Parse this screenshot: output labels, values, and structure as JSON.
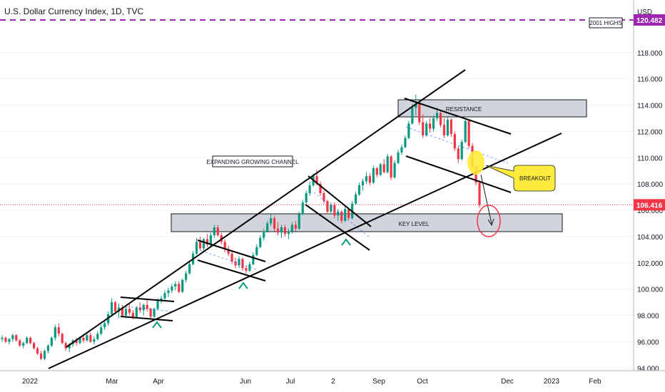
{
  "chart_data": {
    "type": "candlestick",
    "title": "U.S. Dollar Currency Index, 1D, TVC",
    "y_axis_unit": "USD",
    "ylim": [
      93.8,
      122.0
    ],
    "y_ticks": [
      "94.000",
      "96.000",
      "98.000",
      "100.000",
      "102.000",
      "104.000",
      "106.000",
      "108.000",
      "110.000",
      "112.000",
      "114.000",
      "116.000",
      "118.000"
    ],
    "x_ticks": [
      "2022",
      "Mar",
      "Apr",
      "Jun",
      "Jul",
      "2",
      "Sep",
      "Oct",
      "Dec",
      "2023",
      "Feb"
    ],
    "price_tags": [
      {
        "label": "120.482",
        "value": 120.482,
        "color": "#9c27b0"
      },
      {
        "label": "106.416",
        "value": 106.416,
        "color": "#f23645"
      }
    ],
    "annotations": {
      "highs_label": "2001 HIGHS",
      "resistance": "RESISTANCE",
      "key_level": "KEY LEVEL",
      "channel": "EXPANDING GROWING CHANNEL",
      "breakout": "BREAKOUT"
    },
    "colors": {
      "up": "#089981",
      "down": "#f23645",
      "highs_line": "#9c27b0",
      "price_line": "#f23645",
      "breakout_fill": "#ffeb3b",
      "zone_fill": "#d1d4dc"
    },
    "series": [
      {
        "values": [
          [
            96.2,
            96.5,
            96.0,
            96.3
          ],
          [
            96.3,
            96.4,
            95.9,
            96.0
          ],
          [
            96.0,
            96.3,
            95.8,
            96.2
          ],
          [
            96.2,
            96.6,
            96.0,
            96.5
          ],
          [
            96.5,
            96.6,
            96.0,
            96.1
          ],
          [
            96.1,
            96.2,
            95.6,
            95.7
          ],
          [
            95.7,
            96.0,
            95.5,
            95.9
          ],
          [
            95.9,
            96.4,
            95.8,
            96.3
          ],
          [
            96.3,
            96.4,
            95.8,
            95.9
          ],
          [
            95.9,
            96.0,
            95.4,
            95.5
          ],
          [
            95.5,
            95.6,
            95.0,
            95.1
          ],
          [
            95.1,
            95.3,
            94.6,
            94.7
          ],
          [
            94.7,
            95.4,
            94.6,
            95.3
          ],
          [
            95.3,
            95.8,
            95.1,
            95.7
          ],
          [
            95.7,
            96.4,
            95.6,
            96.3
          ],
          [
            96.3,
            97.3,
            96.1,
            97.1
          ],
          [
            97.1,
            97.4,
            96.4,
            96.6
          ],
          [
            96.6,
            96.7,
            95.8,
            95.9
          ],
          [
            95.9,
            96.0,
            95.3,
            95.5
          ],
          [
            95.5,
            95.9,
            95.2,
            95.8
          ],
          [
            95.8,
            96.2,
            95.6,
            96.1
          ],
          [
            96.1,
            96.3,
            95.7,
            95.9
          ],
          [
            95.9,
            96.4,
            95.8,
            96.3
          ],
          [
            96.3,
            96.5,
            95.9,
            96.1
          ],
          [
            96.1,
            96.6,
            96.0,
            96.5
          ],
          [
            96.5,
            96.7,
            95.9,
            96.0
          ],
          [
            96.0,
            96.4,
            95.8,
            96.2
          ],
          [
            96.2,
            96.8,
            96.1,
            96.6
          ],
          [
            96.6,
            97.3,
            96.5,
            97.1
          ],
          [
            97.1,
            97.6,
            96.9,
            97.4
          ],
          [
            97.4,
            98.3,
            97.2,
            98.1
          ],
          [
            98.1,
            99.3,
            97.9,
            99.0
          ],
          [
            99.0,
            99.1,
            98.1,
            98.3
          ],
          [
            98.3,
            98.9,
            97.8,
            98.6
          ],
          [
            98.6,
            98.8,
            97.9,
            98.0
          ],
          [
            98.0,
            98.7,
            97.8,
            98.5
          ],
          [
            98.5,
            98.9,
            98.0,
            98.2
          ],
          [
            98.2,
            98.4,
            97.7,
            97.9
          ],
          [
            97.9,
            98.7,
            97.8,
            98.6
          ],
          [
            98.6,
            99.0,
            98.2,
            98.4
          ],
          [
            98.4,
            98.9,
            98.0,
            98.8
          ],
          [
            98.8,
            99.2,
            98.3,
            98.5
          ],
          [
            98.5,
            98.6,
            97.8,
            97.9
          ],
          [
            97.9,
            98.6,
            97.8,
            98.5
          ],
          [
            98.5,
            99.3,
            98.4,
            99.1
          ],
          [
            99.1,
            99.5,
            98.9,
            99.3
          ],
          [
            99.3,
            99.9,
            99.1,
            99.7
          ],
          [
            99.7,
            100.1,
            99.4,
            99.9
          ],
          [
            99.9,
            100.4,
            99.7,
            100.2
          ],
          [
            100.2,
            100.6,
            99.9,
            100.4
          ],
          [
            100.4,
            100.6,
            99.7,
            99.8
          ],
          [
            99.8,
            100.8,
            99.7,
            100.7
          ],
          [
            100.7,
            101.4,
            100.5,
            101.2
          ],
          [
            101.2,
            102.1,
            101.1,
            101.9
          ],
          [
            101.9,
            102.9,
            101.8,
            102.7
          ],
          [
            102.7,
            103.9,
            102.6,
            103.6
          ],
          [
            103.6,
            104.0,
            102.9,
            103.1
          ],
          [
            103.1,
            103.9,
            102.9,
            103.8
          ],
          [
            103.8,
            104.2,
            103.2,
            103.4
          ],
          [
            103.4,
            104.3,
            103.3,
            104.1
          ],
          [
            104.1,
            104.9,
            103.9,
            104.7
          ],
          [
            104.7,
            104.9,
            104.0,
            104.1
          ],
          [
            104.1,
            104.3,
            103.4,
            103.6
          ],
          [
            103.6,
            103.8,
            102.8,
            103.0
          ],
          [
            103.0,
            103.3,
            102.5,
            102.7
          ],
          [
            102.7,
            102.9,
            101.9,
            102.1
          ],
          [
            102.1,
            102.4,
            101.6,
            101.8
          ],
          [
            101.8,
            102.5,
            101.6,
            102.3
          ],
          [
            102.3,
            102.4,
            101.4,
            101.6
          ],
          [
            101.6,
            101.8,
            101.2,
            101.4
          ],
          [
            101.4,
            102.1,
            101.3,
            101.9
          ],
          [
            101.9,
            102.8,
            101.8,
            102.6
          ],
          [
            102.6,
            103.4,
            102.5,
            103.2
          ],
          [
            103.2,
            104.1,
            103.1,
            103.9
          ],
          [
            103.9,
            104.6,
            103.7,
            104.4
          ],
          [
            104.4,
            105.2,
            104.3,
            105.0
          ],
          [
            105.0,
            105.7,
            104.8,
            105.4
          ],
          [
            105.4,
            105.6,
            104.4,
            104.6
          ],
          [
            104.6,
            105.1,
            104.1,
            104.3
          ],
          [
            104.3,
            104.9,
            103.9,
            104.7
          ],
          [
            104.7,
            104.9,
            104.0,
            104.2
          ],
          [
            104.2,
            104.6,
            103.8,
            104.4
          ],
          [
            104.4,
            105.1,
            104.2,
            104.9
          ],
          [
            104.9,
            105.2,
            104.4,
            104.6
          ],
          [
            104.6,
            105.9,
            104.5,
            105.7
          ],
          [
            105.7,
            106.8,
            105.6,
            106.6
          ],
          [
            106.6,
            107.5,
            106.5,
            107.3
          ],
          [
            107.3,
            108.2,
            107.1,
            107.9
          ],
          [
            107.9,
            108.8,
            107.8,
            108.6
          ],
          [
            108.6,
            109.1,
            107.9,
            108.0
          ],
          [
            108.0,
            108.2,
            107.1,
            107.3
          ],
          [
            107.3,
            107.5,
            106.5,
            106.7
          ],
          [
            106.7,
            106.8,
            105.7,
            105.9
          ],
          [
            105.9,
            106.6,
            105.7,
            106.4
          ],
          [
            106.4,
            106.6,
            105.4,
            105.6
          ],
          [
            105.6,
            106.1,
            105.2,
            105.9
          ],
          [
            105.9,
            106.0,
            105.0,
            105.2
          ],
          [
            105.2,
            106.3,
            105.1,
            106.1
          ],
          [
            106.1,
            106.2,
            105.3,
            105.4
          ],
          [
            105.4,
            106.7,
            105.3,
            106.5
          ],
          [
            106.5,
            107.4,
            106.4,
            107.2
          ],
          [
            107.2,
            108.1,
            107.1,
            107.9
          ],
          [
            107.9,
            108.4,
            107.5,
            108.2
          ],
          [
            108.2,
            108.9,
            108.0,
            108.6
          ],
          [
            108.6,
            108.8,
            107.9,
            108.1
          ],
          [
            108.1,
            109.4,
            108.0,
            109.2
          ],
          [
            109.2,
            109.3,
            108.5,
            108.7
          ],
          [
            108.7,
            109.6,
            108.6,
            109.5
          ],
          [
            109.5,
            109.9,
            108.8,
            108.9
          ],
          [
            108.9,
            110.3,
            108.8,
            110.1
          ],
          [
            110.1,
            110.2,
            108.3,
            108.5
          ],
          [
            108.5,
            109.8,
            108.4,
            109.6
          ],
          [
            109.6,
            110.6,
            109.5,
            110.4
          ],
          [
            110.4,
            111.0,
            110.2,
            110.8
          ],
          [
            110.8,
            111.7,
            110.7,
            111.5
          ],
          [
            111.5,
            112.8,
            111.4,
            112.6
          ],
          [
            112.6,
            114.1,
            112.5,
            113.8
          ],
          [
            113.8,
            114.8,
            113.2,
            114.1
          ],
          [
            114.1,
            114.3,
            112.5,
            112.7
          ],
          [
            112.7,
            113.3,
            111.5,
            111.7
          ],
          [
            111.7,
            112.8,
            111.6,
            112.6
          ],
          [
            112.6,
            113.0,
            111.9,
            112.2
          ],
          [
            112.2,
            113.2,
            112.0,
            113.0
          ],
          [
            113.0,
            113.8,
            112.8,
            113.4
          ],
          [
            113.4,
            113.6,
            112.3,
            112.5
          ],
          [
            112.5,
            113.0,
            111.5,
            111.7
          ],
          [
            111.7,
            113.1,
            111.6,
            112.9
          ],
          [
            112.9,
            113.0,
            111.6,
            111.8
          ],
          [
            111.8,
            112.0,
            110.5,
            110.7
          ],
          [
            110.7,
            110.9,
            109.6,
            109.9
          ],
          [
            109.9,
            111.4,
            109.8,
            111.2
          ],
          [
            111.2,
            113.0,
            111.1,
            112.8
          ],
          [
            112.8,
            112.9,
            110.7,
            110.9
          ],
          [
            110.9,
            111.1,
            109.1,
            109.3
          ],
          [
            109.3,
            109.5,
            107.9,
            108.1
          ],
          [
            108.1,
            108.3,
            106.2,
            106.4
          ]
        ]
      }
    ]
  }
}
